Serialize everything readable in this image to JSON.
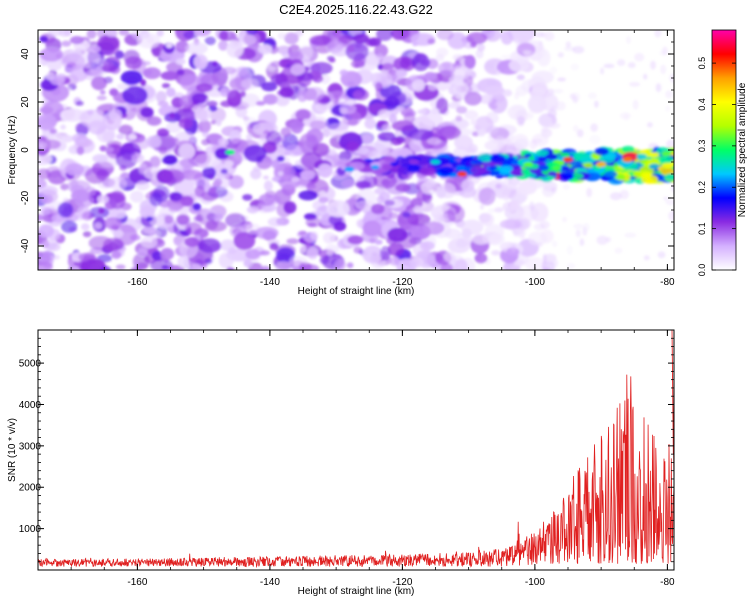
{
  "page": {
    "title": "C2E4.2025.116.22.43.G22"
  },
  "chart_data": [
    {
      "type": "heatmap",
      "title": "C2E4.2025.116.22.43.G22",
      "xlabel": "Height of straight line (km)",
      "ylabel": "Frequency (Hz)",
      "xlim": [
        -175,
        -79
      ],
      "ylim": [
        -50,
        50
      ],
      "xticks": [
        -160,
        -140,
        -120,
        -100,
        -80
      ],
      "yticks": [
        -40,
        -20,
        0,
        20,
        40
      ],
      "colorbar": {
        "label": "Normalized spectral amplitude",
        "range": [
          0,
          0.58
        ],
        "ticks": [
          0,
          0.1,
          0.2,
          0.3,
          0.4,
          0.5
        ],
        "colors": [
          "#ffffff",
          "#d4b0ff",
          "#8a2be2",
          "#0000ff",
          "#00c8ff",
          "#00ff66",
          "#b4ff00",
          "#ffff00",
          "#ffa000",
          "#ff0000",
          "#ff00aa"
        ]
      },
      "features": {
        "noise_region_x": [
          -175,
          -105
        ],
        "noise_amplitude": 0.12,
        "signal_band_center_hz": [
          0,
          -7
        ],
        "signal_band_x": [
          -130,
          -79
        ],
        "signal_peak_amplitude": 0.55
      }
    },
    {
      "type": "line",
      "xlabel": "Height of straight line (km)",
      "ylabel": "SNR (10 * v/v)",
      "xlim": [
        -175,
        -79
      ],
      "ylim": [
        0,
        5800
      ],
      "xticks": [
        -160,
        -140,
        -120,
        -100,
        -80
      ],
      "yticks": [
        1000,
        2000,
        3000,
        4000,
        5000
      ],
      "series": [
        {
          "color": "#e02020",
          "envelope": {
            "x": [
              -175,
              -160,
              -140,
              -120,
              -110,
              -105,
              -100,
              -97,
              -95,
              -92,
              -90,
              -88,
              -86,
              -84,
              -82,
              -80
            ],
            "y": [
              180,
              200,
              250,
              300,
              350,
              450,
              850,
              1300,
              2000,
              2600,
              3200,
              3800,
              4950,
              3700,
              3300,
              2900
            ]
          }
        }
      ]
    }
  ]
}
